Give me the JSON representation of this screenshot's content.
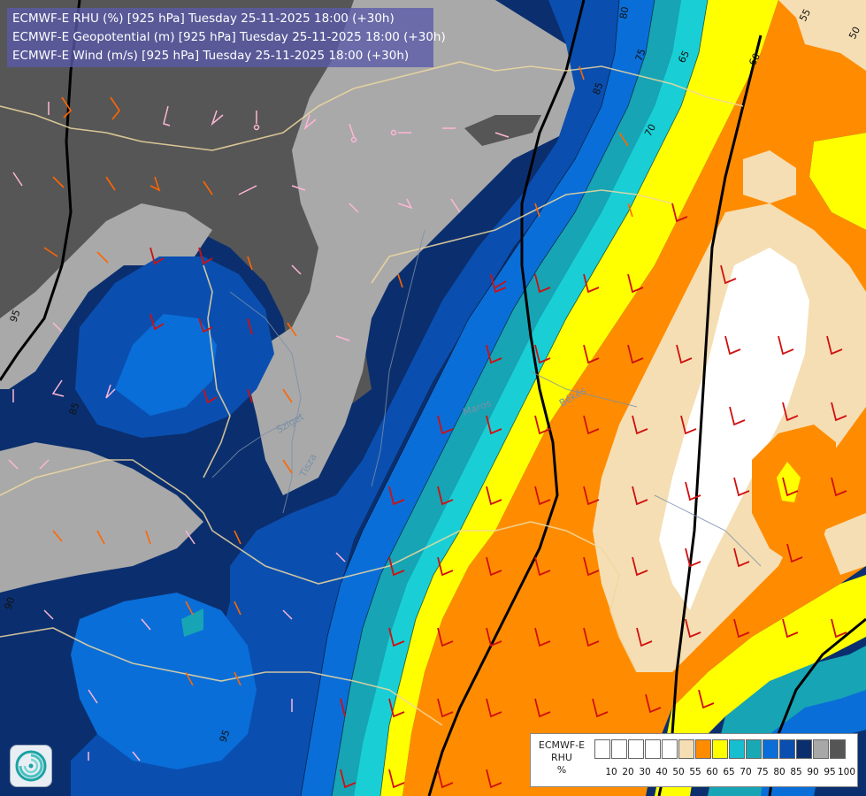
{
  "header": {
    "lines": [
      "ECMWF-E RHU (%) [925 hPa] Tuesday 25-11-2025 18:00 (+30h)",
      "ECMWF-E Geopotential (m) [925 hPa] Tuesday 25-11-2025 18:00 (+30h)",
      "ECMWF-E Wind (m/s) [925 hPa] Tuesday 25-11-2025 18:00 (+30h)"
    ]
  },
  "map_labels": {
    "contour_65": "65",
    "contour_70": "70",
    "contour_75": "75",
    "contour_80": "80",
    "contour_85": "85",
    "contour_85b": "85",
    "contour_90": "90",
    "contour_95": "95",
    "contour_95b": "95",
    "contour_55": "55",
    "contour_60": "60",
    "contour_50": "50",
    "contour_70b": "70",
    "place_bekes": "Békés",
    "place_tisza": "Tisza",
    "place_sziget": "Sziget",
    "place_maros": "Maros"
  },
  "legend": {
    "title_lines": [
      "ECMWF-E",
      "RHU",
      "%"
    ],
    "tick_labels": [
      "10",
      "20",
      "30",
      "40",
      "50",
      "55",
      "60",
      "65",
      "70",
      "75",
      "80",
      "85",
      "90",
      "95",
      "100"
    ],
    "colors": [
      "#ffffff",
      "#ffffff",
      "#ffffff",
      "#ffffff",
      "#ffffff",
      "#f5deb3",
      "#ff8c00",
      "#ffff00",
      "#17becf",
      "#19a9b4",
      "#0a6ed8",
      "#0a4fb0",
      "#0b2f6e",
      "#a8a8a8",
      "#555555"
    ]
  },
  "colors": {
    "band_95_100": "#565656",
    "band_90_95": "#a9a9a9",
    "band_85_90": "#0b2f6e",
    "band_80_85": "#0a4fb0",
    "band_75_80": "#0a6ed8",
    "band_70_75": "#17a4b4",
    "band_65_70": "#19cfd5",
    "band_60_65": "#ffff00",
    "band_55_60": "#ff8c00",
    "band_50_55": "#f5deb3",
    "band_low": "#ffffff",
    "wind_strong": "#d01010",
    "wind_moderate": "#ff6600",
    "wind_light": "#ffb6d6",
    "borders": "#f0d8a0",
    "rivers": "#7a8fa8",
    "geopotential": "#000000"
  },
  "logo_icon": "ecmwf-swirl-icon"
}
